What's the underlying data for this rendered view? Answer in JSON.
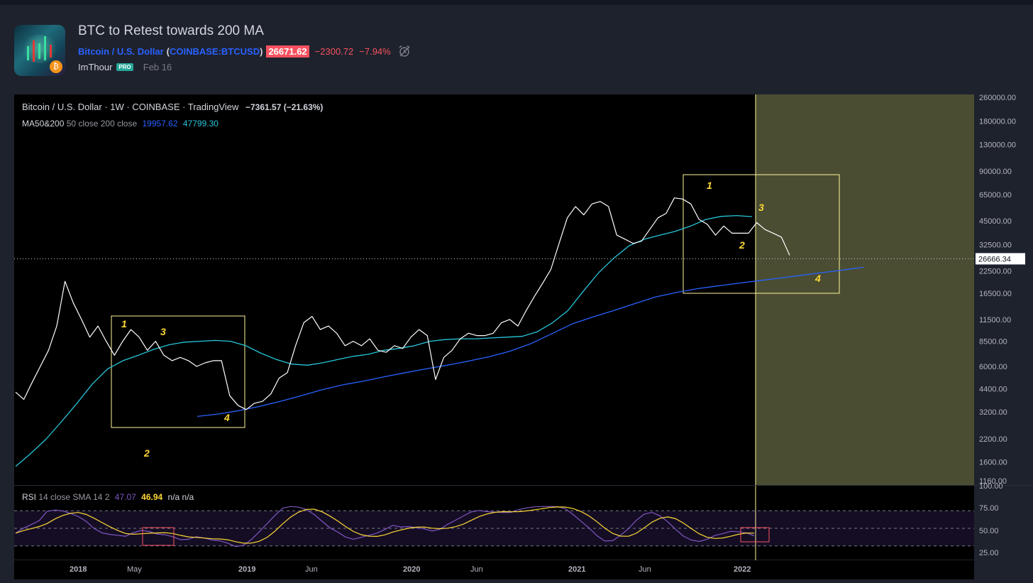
{
  "idea": {
    "title": "BTC to Retest towards 200 MA",
    "pair_name": "Bitcoin / U.S. Dollar",
    "symbol": "COINBASE:BTCUSD",
    "price": "26671.62",
    "change": "−2300.72",
    "change_pct": "−7.94%",
    "author": "ImThour",
    "author_badge": "PRO",
    "date": "Feb 16"
  },
  "chart_legend": {
    "symbol_line": "Bitcoin / U.S. Dollar · 1W · COINBASE · TradingView",
    "change": "−7361.57 (−21.63%)",
    "ma_name": "MA50&200",
    "ma_params": "50 close 200 close",
    "ma50_value": "19957.62",
    "ma200_value": "47799.30"
  },
  "rsi_legend": {
    "name": "RSI",
    "params": "14 close SMA 14 2",
    "rsi_value": "47.07",
    "sma_value": "46.94",
    "extra": "n/a n/a"
  },
  "colors": {
    "price_line": "#ffffff",
    "ma50": "#26c6da",
    "ma200": "#2962ff",
    "rsi": "#7e57c2",
    "rsi_sma": "#fdd835",
    "annotation": "#fdd835",
    "box": "#fff59d",
    "red_box": "#f7525f",
    "future_zone": "#4a4d31"
  },
  "chart_data": {
    "type": "line",
    "y_scale": "log",
    "price_axis_labels": [
      "260000.00",
      "180000.00",
      "130000.00",
      "90000.00",
      "65000.00",
      "45000.00",
      "32500.00",
      "22500.00",
      "16500.00",
      "11500.00",
      "8500.00",
      "6000.00",
      "4400.00",
      "3200.00",
      "2200.00",
      "1600.00",
      "1160.00"
    ],
    "current_price_label": "26666.34",
    "rsi_axis_labels": [
      "100.00",
      "75.00",
      "50.00",
      "25.00"
    ],
    "time_labels": [
      "2018",
      "May",
      "2019",
      "Jun",
      "2020",
      "Jun",
      "2021",
      "Jun",
      "2022"
    ],
    "annotations": [
      "1",
      "2",
      "3",
      "4",
      "1",
      "2",
      "3",
      "4"
    ],
    "series": [
      {
        "name": "",
        "values": [
          4200,
          3800,
          4800,
          6000,
          7500,
          10500,
          19500,
          14500,
          11500,
          9000,
          10500,
          8500,
          7000,
          8500,
          10000,
          9000,
          7500,
          8500,
          7000,
          6500,
          6800,
          6500,
          6000,
          6300,
          6500,
          6500,
          4000,
          3500,
          3300,
          3600,
          3700,
          4100,
          5100,
          5500,
          8000,
          11000,
          12000,
          10000,
          10500,
          9500,
          8000,
          8500,
          8000,
          8800,
          7500,
          7300,
          8000,
          7700,
          9000,
          10000,
          9200,
          5000,
          6800,
          7500,
          8800,
          9500,
          9200,
          9200,
          9500,
          11000,
          11500,
          10500,
          13000,
          15800,
          19000,
          23000,
          33000,
          47000,
          55000,
          49000,
          57000,
          59000,
          55000,
          37000,
          35000,
          33000,
          34000,
          40000,
          47000,
          50000,
          62000,
          61000,
          57000,
          46000,
          43000,
          37000,
          42000,
          38000,
          38000,
          38000,
          44000,
          40000,
          38000,
          36000,
          28000
        ]
      },
      {
        "name": "",
        "values": [
          1500,
          1800,
          2200,
          2800,
          3600,
          4700,
          5800,
          6500,
          7000,
          7600,
          8100,
          8400,
          8500,
          8600,
          8500,
          8000,
          7200,
          6600,
          6200,
          6100,
          6300,
          6600,
          6900,
          7100,
          7500,
          7700,
          8000,
          8500,
          8700,
          8800,
          8800,
          8900,
          9000,
          9100,
          9700,
          11000,
          13000,
          17000,
          22000,
          27000,
          32000,
          35000,
          37000,
          39000,
          42000,
          46000,
          48000,
          48500,
          47800
        ]
      },
      {
        "name": "",
        "values": [
          3000,
          3100,
          3250,
          3450,
          3700,
          4000,
          4350,
          4650,
          4900,
          5200,
          5500,
          5800,
          6100,
          6450,
          6850,
          7400,
          8200,
          9400,
          10800,
          11900,
          13000,
          14300,
          15700,
          16700,
          17600,
          18300,
          19000,
          19700,
          20400,
          21200,
          22000,
          22800,
          23700
        ]
      }
    ]
  }
}
